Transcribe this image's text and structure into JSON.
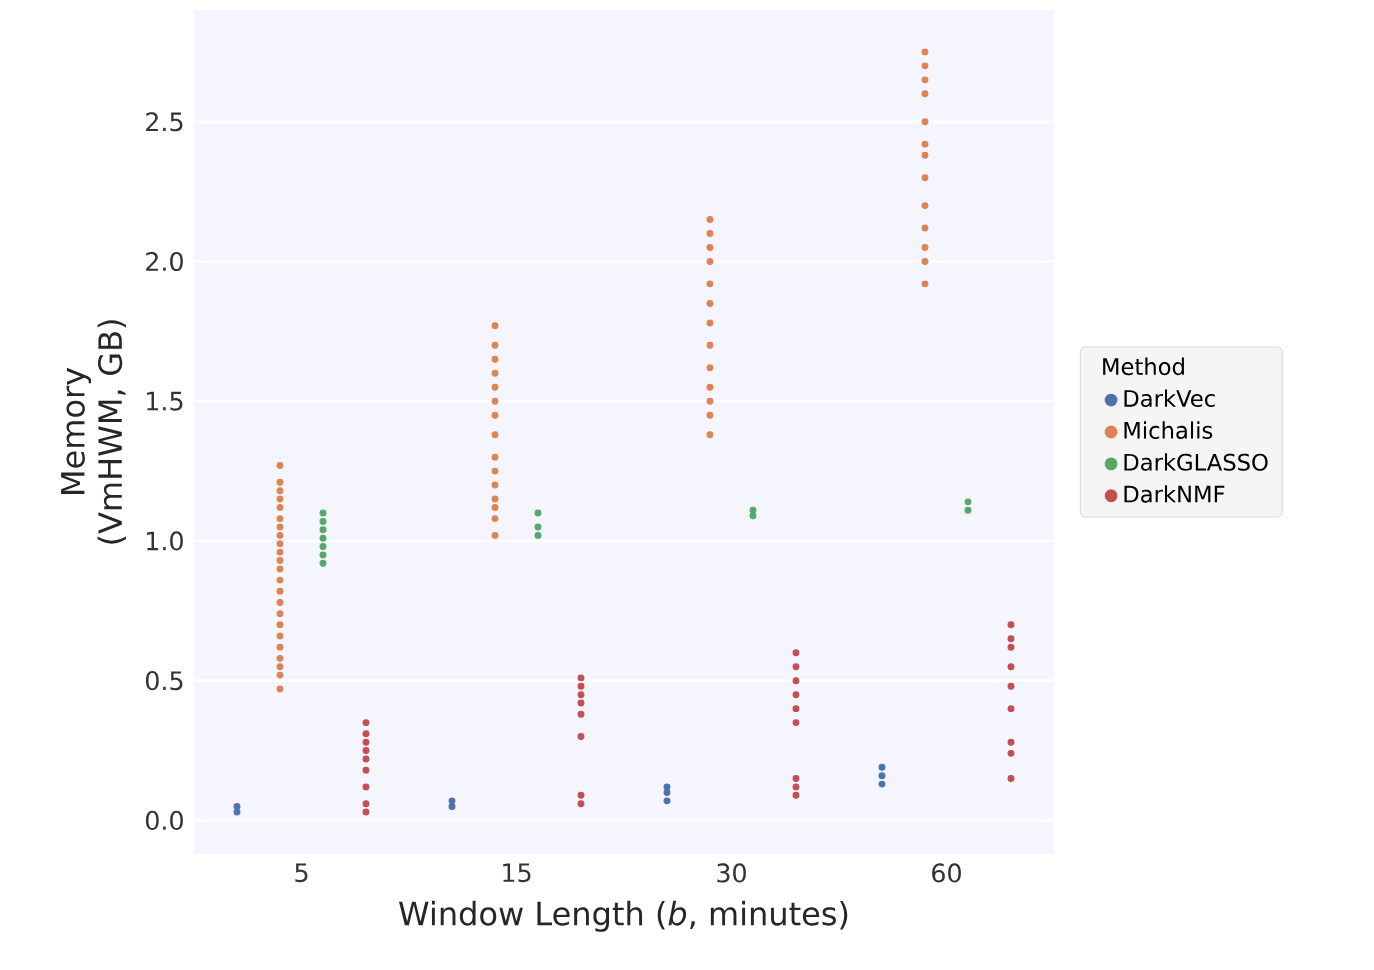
{
  "chart_data": {
    "type": "scatter",
    "xlabel": "Window Length (*b*, minutes)",
    "ylabel": "Memory (VmHWM, GB)",
    "legend_title": "Method",
    "categories": [
      "5",
      "15",
      "30",
      "60"
    ],
    "ylim": [
      -0.12,
      2.9
    ],
    "yticks": [
      {
        "value": 0,
        "label": "0.0"
      },
      {
        "value": 0.5,
        "label": "0.5"
      },
      {
        "value": 1,
        "label": "1.0"
      },
      {
        "value": 1.5,
        "label": "1.5"
      },
      {
        "value": 2,
        "label": "2.0"
      },
      {
        "value": 2.5,
        "label": "2.5"
      }
    ],
    "grid": "y",
    "legend": "right",
    "series": [
      {
        "name": "DarkVec",
        "color": "#4c72b0",
        "x": [
          "5",
          "5",
          "15",
          "15",
          "30",
          "30",
          "30",
          "60",
          "60",
          "60"
        ],
        "values": [
          0.03,
          0.05,
          0.05,
          0.07,
          0.07,
          0.1,
          0.12,
          0.13,
          0.16,
          0.19
        ]
      },
      {
        "name": "Michalis",
        "color": "#dd8452",
        "x": [
          "5",
          "5",
          "5",
          "5",
          "5",
          "5",
          "5",
          "5",
          "5",
          "5",
          "5",
          "5",
          "5",
          "5",
          "5",
          "5",
          "5",
          "5",
          "5",
          "5",
          "5",
          "5",
          "5",
          "15",
          "15",
          "15",
          "15",
          "15",
          "15",
          "15",
          "15",
          "15",
          "15",
          "15",
          "15",
          "15",
          "15",
          "15",
          "30",
          "30",
          "30",
          "30",
          "30",
          "30",
          "30",
          "30",
          "30",
          "30",
          "30",
          "30",
          "30",
          "60",
          "60",
          "60",
          "60",
          "60",
          "60",
          "60",
          "60",
          "60",
          "60",
          "60",
          "60",
          "60"
        ],
        "values": [
          0.47,
          0.52,
          0.55,
          0.58,
          0.62,
          0.66,
          0.7,
          0.74,
          0.78,
          0.82,
          0.86,
          0.9,
          0.93,
          0.96,
          0.99,
          1.02,
          1.05,
          1.08,
          1.12,
          1.15,
          1.18,
          1.21,
          1.27,
          1.02,
          1.08,
          1.12,
          1.15,
          1.2,
          1.25,
          1.3,
          1.38,
          1.45,
          1.5,
          1.55,
          1.6,
          1.65,
          1.7,
          1.77,
          1.38,
          1.45,
          1.5,
          1.55,
          1.62,
          1.7,
          1.78,
          1.85,
          1.92,
          2.0,
          2.05,
          2.1,
          2.15,
          1.92,
          2.0,
          2.05,
          2.12,
          2.2,
          2.3,
          2.38,
          2.42,
          2.5,
          2.6,
          2.65,
          2.75,
          2.7
        ]
      },
      {
        "name": "DarkGLASSO",
        "color": "#55a868",
        "x": [
          "5",
          "5",
          "5",
          "5",
          "5",
          "5",
          "5",
          "15",
          "15",
          "15",
          "30",
          "30",
          "60",
          "60"
        ],
        "values": [
          0.92,
          0.95,
          0.98,
          1.01,
          1.04,
          1.07,
          1.1,
          1.02,
          1.05,
          1.1,
          1.09,
          1.11,
          1.11,
          1.14
        ]
      },
      {
        "name": "DarkNMF",
        "color": "#c44e52",
        "x": [
          "5",
          "5",
          "5",
          "5",
          "5",
          "5",
          "5",
          "5",
          "5",
          "15",
          "15",
          "15",
          "15",
          "15",
          "15",
          "15",
          "15",
          "30",
          "30",
          "30",
          "30",
          "30",
          "30",
          "30",
          "30",
          "30",
          "60",
          "60",
          "60",
          "60",
          "60",
          "60",
          "60",
          "60",
          "60"
        ],
        "values": [
          0.03,
          0.06,
          0.12,
          0.18,
          0.22,
          0.25,
          0.28,
          0.31,
          0.35,
          0.06,
          0.09,
          0.3,
          0.38,
          0.42,
          0.45,
          0.48,
          0.51,
          0.09,
          0.12,
          0.15,
          0.35,
          0.4,
          0.45,
          0.5,
          0.55,
          0.6,
          0.15,
          0.24,
          0.28,
          0.4,
          0.48,
          0.55,
          0.62,
          0.65,
          0.7
        ]
      }
    ]
  }
}
